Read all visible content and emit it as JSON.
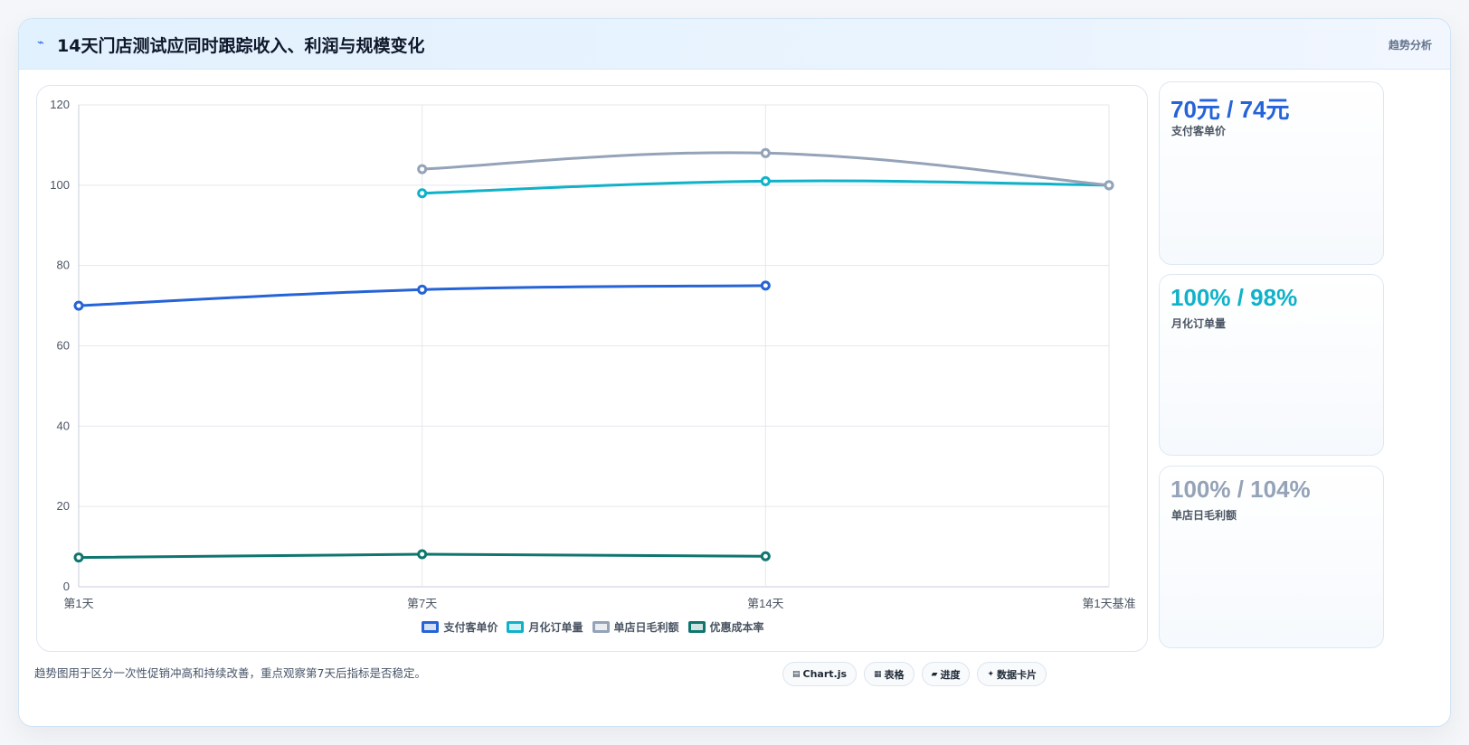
{
  "header": {
    "title": "14天门店测试应同时跟踪收入、利润与规模变化",
    "title_icon": "trend-bolt-icon",
    "tag": "趋势分析"
  },
  "chart_data": {
    "type": "line",
    "categories": [
      "第1天",
      "第7天",
      "第14天",
      "第1天基准"
    ],
    "ylim": [
      0,
      120
    ],
    "yticks": [
      0,
      20,
      40,
      60,
      80,
      100,
      120
    ],
    "grid": true,
    "legend_position": "bottom",
    "series": [
      {
        "name": "支付客单价",
        "color": "#2563d6",
        "values": [
          70,
          74,
          75,
          null
        ]
      },
      {
        "name": "月化订单量",
        "color": "#10b2c9",
        "values": [
          null,
          98,
          101,
          100
        ]
      },
      {
        "name": "单店日毛利额",
        "color": "#94a3b8",
        "values": [
          null,
          104,
          108,
          100
        ]
      },
      {
        "name": "优惠成本率",
        "color": "#0f766e",
        "values": [
          7.3,
          8.1,
          7.6,
          null
        ]
      }
    ]
  },
  "kpis": [
    {
      "value": "70元 / 74元",
      "label": "支付客单价",
      "color": "#2563d6"
    },
    {
      "value": "100% / 98%",
      "label": "月化订单量",
      "color": "#10b2c9"
    },
    {
      "value": "100% / 104%",
      "label": "单店日毛利额",
      "color": "#94a3b8"
    }
  ],
  "footer": {
    "note": "趋势图用于区分一次性促销冲高和持续改善，重点观察第7天后指标是否稳定。",
    "chips": [
      {
        "icon": "chart-icon",
        "glyph": "▤",
        "label": "Chart.js"
      },
      {
        "icon": "table-icon",
        "glyph": "▦",
        "label": "表格"
      },
      {
        "icon": "progress-icon",
        "glyph": "▰",
        "label": "进度"
      },
      {
        "icon": "data-card-icon",
        "glyph": "✦",
        "label": "数据卡片"
      }
    ]
  }
}
